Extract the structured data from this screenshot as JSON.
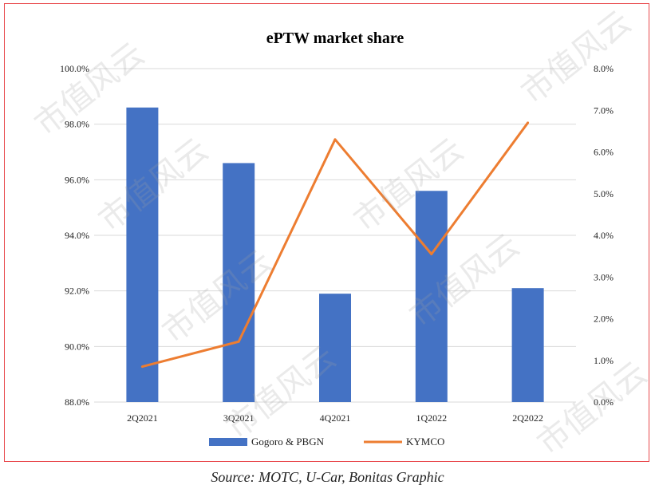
{
  "chart_data": {
    "type": "bar",
    "title": "ePTW market share",
    "categories": [
      "2Q2021",
      "3Q2021",
      "4Q2021",
      "1Q2022",
      "2Q2022"
    ],
    "series": [
      {
        "name": "Gogoro & PBGN",
        "type": "bar",
        "axis": "left",
        "color": "#4472c4",
        "values": [
          98.6,
          96.6,
          91.9,
          95.6,
          92.1
        ]
      },
      {
        "name": "KYMCO",
        "type": "line",
        "axis": "right",
        "color": "#ed7d31",
        "values": [
          0.85,
          1.45,
          6.3,
          3.55,
          6.7
        ]
      }
    ],
    "y_left": {
      "ylim": [
        88.0,
        100.0
      ],
      "ticks": [
        "88.0%",
        "90.0%",
        "92.0%",
        "94.0%",
        "96.0%",
        "98.0%",
        "100.0%"
      ]
    },
    "y_right": {
      "ylim": [
        0.0,
        8.0
      ],
      "ticks": [
        "0.0%",
        "1.0%",
        "2.0%",
        "3.0%",
        "4.0%",
        "5.0%",
        "6.0%",
        "7.0%",
        "8.0%"
      ]
    },
    "grid": true,
    "legend": "bottom"
  },
  "source": "Source: MOTC, U-Car, Bonitas Graphic",
  "watermark": "市值风云"
}
